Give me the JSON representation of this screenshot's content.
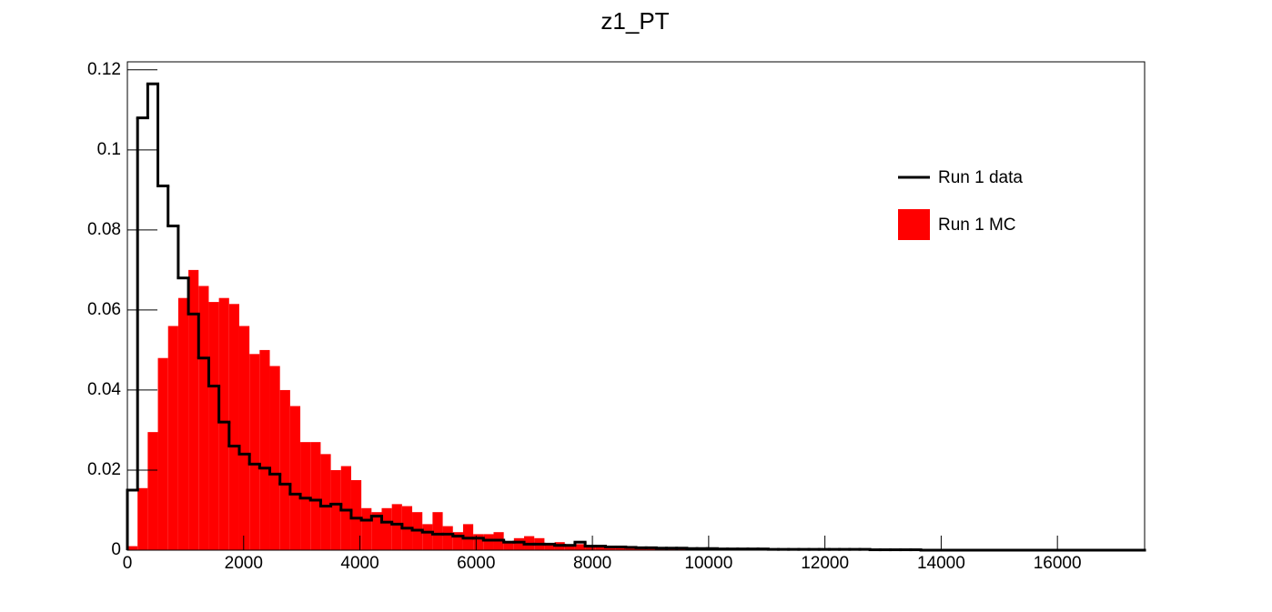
{
  "chart_data": {
    "type": "histogram",
    "title": "z1_PT",
    "bins": [
      0,
      175,
      350,
      525,
      700,
      875,
      1050,
      1225,
      1400,
      1575,
      1750,
      1925,
      2100,
      2275,
      2450,
      2625,
      2800,
      2975,
      3150,
      3325,
      3500,
      3675,
      3850,
      4025,
      4200,
      4375,
      4550,
      4725,
      4900,
      5075,
      5250,
      5425,
      5600,
      5775,
      5950,
      6125,
      6300,
      6475,
      6650,
      6825,
      7000,
      7175,
      7350,
      7525,
      7700,
      7875,
      8050,
      8225,
      8400,
      8575,
      8750,
      8925,
      9100,
      9275,
      9450,
      9625,
      9800,
      9975,
      10150,
      10325,
      10500,
      10675,
      10850,
      11025,
      11200,
      11375,
      11550,
      11725,
      11900,
      12075,
      12250,
      12425,
      12600,
      12775,
      12950,
      13125,
      13300,
      13475,
      13650,
      13825,
      14000,
      14175,
      14350,
      14525,
      14700,
      14875,
      15050,
      15225,
      15400,
      15575,
      15750,
      15925,
      16100,
      16275,
      16450,
      16625,
      16800,
      16975,
      17150,
      17325,
      17500
    ],
    "series": [
      {
        "name": "Run 1 MC",
        "color": "#ff0000",
        "style": "fill",
        "values": [
          0.001,
          0.0155,
          0.0295,
          0.048,
          0.056,
          0.063,
          0.07,
          0.066,
          0.062,
          0.063,
          0.0615,
          0.056,
          0.049,
          0.05,
          0.046,
          0.04,
          0.036,
          0.027,
          0.027,
          0.024,
          0.02,
          0.021,
          0.0175,
          0.0105,
          0.0095,
          0.0105,
          0.0115,
          0.011,
          0.0095,
          0.0065,
          0.0095,
          0.006,
          0.0045,
          0.0065,
          0.004,
          0.004,
          0.0045,
          0.002,
          0.003,
          0.0035,
          0.003,
          0.0015,
          0.002,
          0.001,
          0.0015,
          0.001,
          0.001,
          0.0005,
          0.0005,
          0.0005,
          0.0004,
          0.0004,
          0.0003,
          0.0003,
          0.0003,
          0.0002,
          0.0002,
          0.0002,
          0.0001,
          0.0001,
          0.0001,
          0.0003,
          0.0001,
          0.0001,
          0.0001,
          0.0003,
          0.0001,
          0,
          0.0001,
          0,
          0.0001,
          0,
          0.0001,
          0,
          0.0001,
          0,
          0,
          0,
          0,
          0,
          0,
          0,
          0,
          0,
          0,
          0,
          0,
          0,
          0,
          0,
          0,
          0.0002,
          0,
          0,
          0,
          0,
          0,
          0,
          0,
          0
        ]
      },
      {
        "name": "Run 1 data",
        "color": "#000000",
        "style": "line",
        "values": [
          0.015,
          0.108,
          0.1165,
          0.091,
          0.081,
          0.068,
          0.059,
          0.048,
          0.041,
          0.032,
          0.026,
          0.024,
          0.0215,
          0.0205,
          0.019,
          0.0165,
          0.014,
          0.013,
          0.0125,
          0.011,
          0.0115,
          0.01,
          0.008,
          0.0075,
          0.0085,
          0.007,
          0.0065,
          0.0055,
          0.005,
          0.0045,
          0.004,
          0.004,
          0.0035,
          0.003,
          0.003,
          0.0025,
          0.0025,
          0.002,
          0.002,
          0.0015,
          0.0015,
          0.0015,
          0.0012,
          0.0012,
          0.002,
          0.001,
          0.001,
          0.0008,
          0.0008,
          0.0007,
          0.0006,
          0.0006,
          0.0005,
          0.0005,
          0.0005,
          0.0004,
          0.0004,
          0.0004,
          0.0003,
          0.0003,
          0.0003,
          0.0003,
          0.0003,
          0.0002,
          0.0002,
          0.0002,
          0.0002,
          0.0002,
          0.0002,
          0.0002,
          0.0002,
          0.0002,
          0.0002,
          0.0001,
          0.0001,
          0.0001,
          0.0001,
          0.0001,
          0,
          0,
          0,
          0,
          0,
          0,
          0,
          0,
          0,
          0,
          0,
          0,
          0,
          0,
          0,
          0,
          0,
          0,
          0,
          0,
          0,
          0
        ]
      }
    ],
    "xlim": [
      0,
      17500
    ],
    "xticks": [
      0,
      2000,
      4000,
      6000,
      8000,
      10000,
      12000,
      14000,
      16000
    ],
    "ylim": [
      0,
      0.122
    ],
    "yticks": [
      0,
      0.02,
      0.04,
      0.06,
      0.08,
      0.1,
      0.12
    ],
    "legend": "upper right",
    "grid": false
  }
}
